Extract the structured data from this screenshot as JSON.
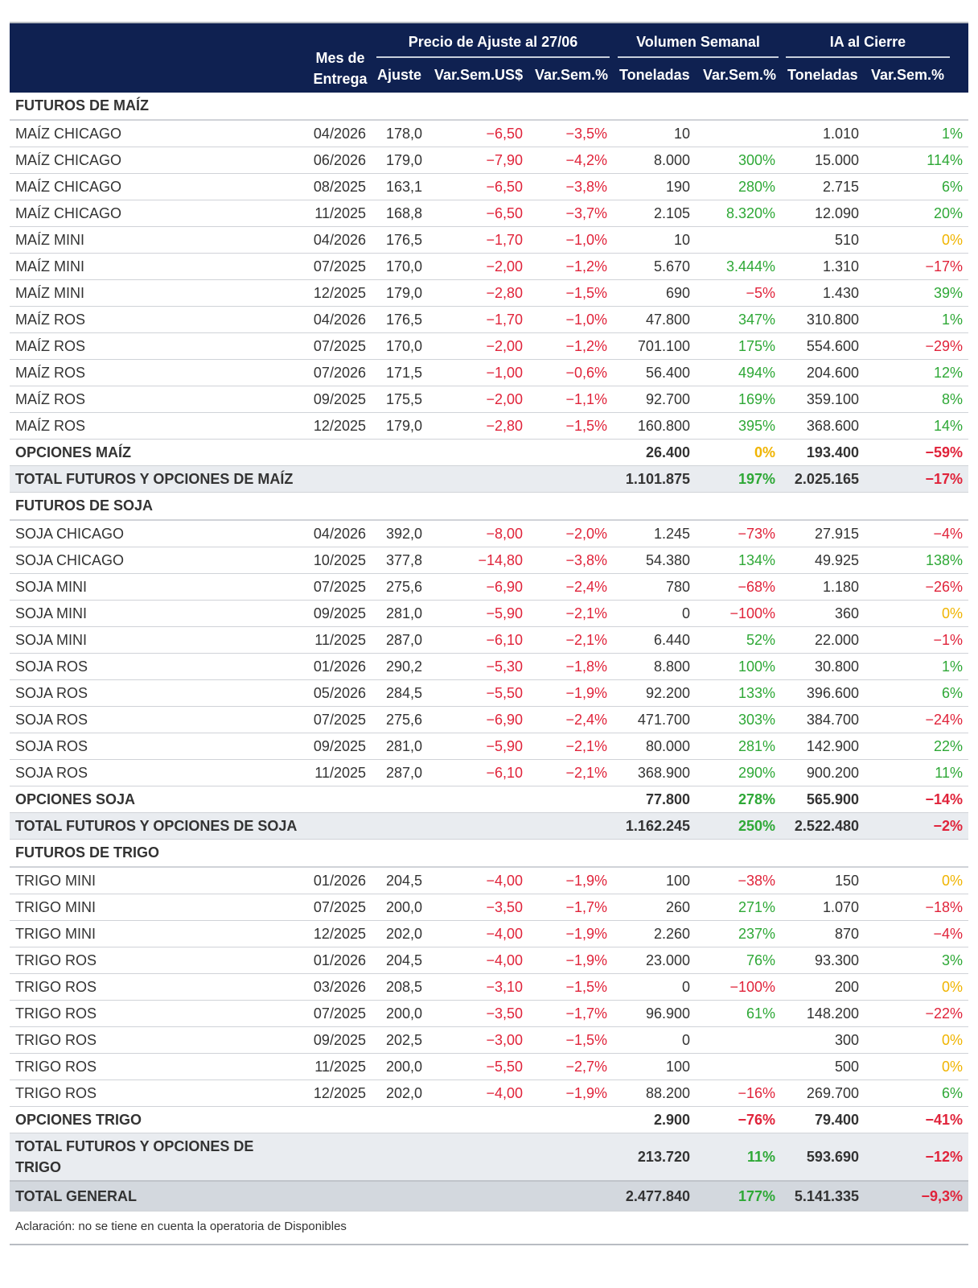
{
  "header": {
    "mes_label": "Mes de Entrega",
    "group_precio": "Precio de Ajuste al 27/06",
    "group_volumen": "Volumen Semanal",
    "group_ia": "IA al Cierre",
    "col_ajuste": "Ajuste",
    "col_varus": "Var.Sem.US$",
    "col_varpct": "Var.Sem.%",
    "col_vol_ton": "Toneladas",
    "col_vol_var": "Var.Sem.%",
    "col_ia_ton": "Toneladas",
    "col_ia_var": "Var.Sem.%"
  },
  "rows": [
    {
      "type": "section",
      "label": "FUTUROS DE MAÍZ"
    },
    {
      "type": "data",
      "label": "MAÍZ CHICAGO",
      "mes": "04/2026",
      "ajuste": "178,0",
      "varus": "−6,50",
      "varpct": "−3,5%",
      "volton": "10",
      "volvar": "",
      "iaton": "1.010",
      "iavar": "1%"
    },
    {
      "type": "data",
      "label": "MAÍZ CHICAGO",
      "mes": "06/2026",
      "ajuste": "179,0",
      "varus": "−7,90",
      "varpct": "−4,2%",
      "volton": "8.000",
      "volvar": "300%",
      "iaton": "15.000",
      "iavar": "114%"
    },
    {
      "type": "data",
      "label": "MAÍZ CHICAGO",
      "mes": "08/2025",
      "ajuste": "163,1",
      "varus": "−6,50",
      "varpct": "−3,8%",
      "volton": "190",
      "volvar": "280%",
      "iaton": "2.715",
      "iavar": "6%"
    },
    {
      "type": "data",
      "label": "MAÍZ CHICAGO",
      "mes": "11/2025",
      "ajuste": "168,8",
      "varus": "−6,50",
      "varpct": "−3,7%",
      "volton": "2.105",
      "volvar": "8.320%",
      "iaton": "12.090",
      "iavar": "20%"
    },
    {
      "type": "data",
      "label": "MAÍZ MINI",
      "mes": "04/2026",
      "ajuste": "176,5",
      "varus": "−1,70",
      "varpct": "−1,0%",
      "volton": "10",
      "volvar": "",
      "iaton": "510",
      "iavar": "0%"
    },
    {
      "type": "data",
      "label": "MAÍZ MINI",
      "mes": "07/2025",
      "ajuste": "170,0",
      "varus": "−2,00",
      "varpct": "−1,2%",
      "volton": "5.670",
      "volvar": "3.444%",
      "iaton": "1.310",
      "iavar": "−17%"
    },
    {
      "type": "data",
      "label": "MAÍZ MINI",
      "mes": "12/2025",
      "ajuste": "179,0",
      "varus": "−2,80",
      "varpct": "−1,5%",
      "volton": "690",
      "volvar": "−5%",
      "iaton": "1.430",
      "iavar": "39%"
    },
    {
      "type": "data",
      "label": "MAÍZ ROS",
      "mes": "04/2026",
      "ajuste": "176,5",
      "varus": "−1,70",
      "varpct": "−1,0%",
      "volton": "47.800",
      "volvar": "347%",
      "iaton": "310.800",
      "iavar": "1%"
    },
    {
      "type": "data",
      "label": "MAÍZ ROS",
      "mes": "07/2025",
      "ajuste": "170,0",
      "varus": "−2,00",
      "varpct": "−1,2%",
      "volton": "701.100",
      "volvar": "175%",
      "iaton": "554.600",
      "iavar": "−29%"
    },
    {
      "type": "data",
      "label": "MAÍZ ROS",
      "mes": "07/2026",
      "ajuste": "171,5",
      "varus": "−1,00",
      "varpct": "−0,6%",
      "volton": "56.400",
      "volvar": "494%",
      "iaton": "204.600",
      "iavar": "12%"
    },
    {
      "type": "data",
      "label": "MAÍZ ROS",
      "mes": "09/2025",
      "ajuste": "175,5",
      "varus": "−2,00",
      "varpct": "−1,1%",
      "volton": "92.700",
      "volvar": "169%",
      "iaton": "359.100",
      "iavar": "8%"
    },
    {
      "type": "data",
      "label": "MAÍZ ROS",
      "mes": "12/2025",
      "ajuste": "179,0",
      "varus": "−2,80",
      "varpct": "−1,5%",
      "volton": "160.800",
      "volvar": "395%",
      "iaton": "368.600",
      "iavar": "14%"
    },
    {
      "type": "opt",
      "label": "OPCIONES MAÍZ",
      "volton": "26.400",
      "volvar": "0%",
      "iaton": "193.400",
      "iavar": "−59%"
    },
    {
      "type": "tot",
      "label": "TOTAL FUTUROS Y OPCIONES DE MAÍZ",
      "volton": "1.101.875",
      "volvar": "197%",
      "iaton": "2.025.165",
      "iavar": "−17%"
    },
    {
      "type": "section",
      "label": "FUTUROS DE SOJA"
    },
    {
      "type": "data",
      "label": "SOJA CHICAGO",
      "mes": "04/2026",
      "ajuste": "392,0",
      "varus": "−8,00",
      "varpct": "−2,0%",
      "volton": "1.245",
      "volvar": "−73%",
      "iaton": "27.915",
      "iavar": "−4%"
    },
    {
      "type": "data",
      "label": "SOJA CHICAGO",
      "mes": "10/2025",
      "ajuste": "377,8",
      "varus": "−14,80",
      "varpct": "−3,8%",
      "volton": "54.380",
      "volvar": "134%",
      "iaton": "49.925",
      "iavar": "138%"
    },
    {
      "type": "data",
      "label": "SOJA MINI",
      "mes": "07/2025",
      "ajuste": "275,6",
      "varus": "−6,90",
      "varpct": "−2,4%",
      "volton": "780",
      "volvar": "−68%",
      "iaton": "1.180",
      "iavar": "−26%"
    },
    {
      "type": "data",
      "label": "SOJA MINI",
      "mes": "09/2025",
      "ajuste": "281,0",
      "varus": "−5,90",
      "varpct": "−2,1%",
      "volton": "0",
      "volvar": "−100%",
      "iaton": "360",
      "iavar": "0%"
    },
    {
      "type": "data",
      "label": "SOJA MINI",
      "mes": "11/2025",
      "ajuste": "287,0",
      "varus": "−6,10",
      "varpct": "−2,1%",
      "volton": "6.440",
      "volvar": "52%",
      "iaton": "22.000",
      "iavar": "−1%"
    },
    {
      "type": "data",
      "label": "SOJA ROS",
      "mes": "01/2026",
      "ajuste": "290,2",
      "varus": "−5,30",
      "varpct": "−1,8%",
      "volton": "8.800",
      "volvar": "100%",
      "iaton": "30.800",
      "iavar": "1%"
    },
    {
      "type": "data",
      "label": "SOJA ROS",
      "mes": "05/2026",
      "ajuste": "284,5",
      "varus": "−5,50",
      "varpct": "−1,9%",
      "volton": "92.200",
      "volvar": "133%",
      "iaton": "396.600",
      "iavar": "6%"
    },
    {
      "type": "data",
      "label": "SOJA ROS",
      "mes": "07/2025",
      "ajuste": "275,6",
      "varus": "−6,90",
      "varpct": "−2,4%",
      "volton": "471.700",
      "volvar": "303%",
      "iaton": "384.700",
      "iavar": "−24%"
    },
    {
      "type": "data",
      "label": "SOJA ROS",
      "mes": "09/2025",
      "ajuste": "281,0",
      "varus": "−5,90",
      "varpct": "−2,1%",
      "volton": "80.000",
      "volvar": "281%",
      "iaton": "142.900",
      "iavar": "22%"
    },
    {
      "type": "data",
      "label": "SOJA ROS",
      "mes": "11/2025",
      "ajuste": "287,0",
      "varus": "−6,10",
      "varpct": "−2,1%",
      "volton": "368.900",
      "volvar": "290%",
      "iaton": "900.200",
      "iavar": "11%"
    },
    {
      "type": "opt",
      "label": "OPCIONES SOJA",
      "volton": "77.800",
      "volvar": "278%",
      "iaton": "565.900",
      "iavar": "−14%"
    },
    {
      "type": "tot",
      "label": "TOTAL FUTUROS Y OPCIONES DE SOJA",
      "volton": "1.162.245",
      "volvar": "250%",
      "iaton": "2.522.480",
      "iavar": "−2%"
    },
    {
      "type": "section",
      "label": "FUTUROS DE TRIGO"
    },
    {
      "type": "data",
      "label": "TRIGO MINI",
      "mes": "01/2026",
      "ajuste": "204,5",
      "varus": "−4,00",
      "varpct": "−1,9%",
      "volton": "100",
      "volvar": "−38%",
      "iaton": "150",
      "iavar": "0%"
    },
    {
      "type": "data",
      "label": "TRIGO MINI",
      "mes": "07/2025",
      "ajuste": "200,0",
      "varus": "−3,50",
      "varpct": "−1,7%",
      "volton": "260",
      "volvar": "271%",
      "iaton": "1.070",
      "iavar": "−18%"
    },
    {
      "type": "data",
      "label": "TRIGO MINI",
      "mes": "12/2025",
      "ajuste": "202,0",
      "varus": "−4,00",
      "varpct": "−1,9%",
      "volton": "2.260",
      "volvar": "237%",
      "iaton": "870",
      "iavar": "−4%"
    },
    {
      "type": "data",
      "label": "TRIGO ROS",
      "mes": "01/2026",
      "ajuste": "204,5",
      "varus": "−4,00",
      "varpct": "−1,9%",
      "volton": "23.000",
      "volvar": "76%",
      "iaton": "93.300",
      "iavar": "3%"
    },
    {
      "type": "data",
      "label": "TRIGO ROS",
      "mes": "03/2026",
      "ajuste": "208,5",
      "varus": "−3,10",
      "varpct": "−1,5%",
      "volton": "0",
      "volvar": "−100%",
      "iaton": "200",
      "iavar": "0%"
    },
    {
      "type": "data",
      "label": "TRIGO ROS",
      "mes": "07/2025",
      "ajuste": "200,0",
      "varus": "−3,50",
      "varpct": "−1,7%",
      "volton": "96.900",
      "volvar": "61%",
      "iaton": "148.200",
      "iavar": "−22%"
    },
    {
      "type": "data",
      "label": "TRIGO ROS",
      "mes": "09/2025",
      "ajuste": "202,5",
      "varus": "−3,00",
      "varpct": "−1,5%",
      "volton": "0",
      "volvar": "",
      "iaton": "300",
      "iavar": "0%"
    },
    {
      "type": "data",
      "label": "TRIGO ROS",
      "mes": "11/2025",
      "ajuste": "200,0",
      "varus": "−5,50",
      "varpct": "−2,7%",
      "volton": "100",
      "volvar": "",
      "iaton": "500",
      "iavar": "0%"
    },
    {
      "type": "data",
      "label": "TRIGO ROS",
      "mes": "12/2025",
      "ajuste": "202,0",
      "varus": "−4,00",
      "varpct": "−1,9%",
      "volton": "88.200",
      "volvar": "−16%",
      "iaton": "269.700",
      "iavar": "6%"
    },
    {
      "type": "opt",
      "label": "OPCIONES TRIGO",
      "volton": "2.900",
      "volvar": "−76%",
      "iaton": "79.400",
      "iavar": "−41%"
    },
    {
      "type": "tot2",
      "label": "TOTAL FUTUROS Y OPCIONES DE TRIGO",
      "volton": "213.720",
      "volvar": "11%",
      "iaton": "593.690",
      "iavar": "−12%"
    },
    {
      "type": "grand",
      "label": "TOTAL GENERAL",
      "volton": "2.477.840",
      "volvar": "177%",
      "iaton": "5.141.335",
      "iavar": "−9,3%"
    }
  ],
  "note": "Aclaración: no se tiene en cuenta la operatoria de Disponibles",
  "colors": {
    "header_bg": "#0f2151",
    "negative": "#e0233a",
    "positive": "#2ea836",
    "zero": "#f0b400",
    "total_bg": "#e9ecf0",
    "grand_bg": "#d3d8de"
  }
}
